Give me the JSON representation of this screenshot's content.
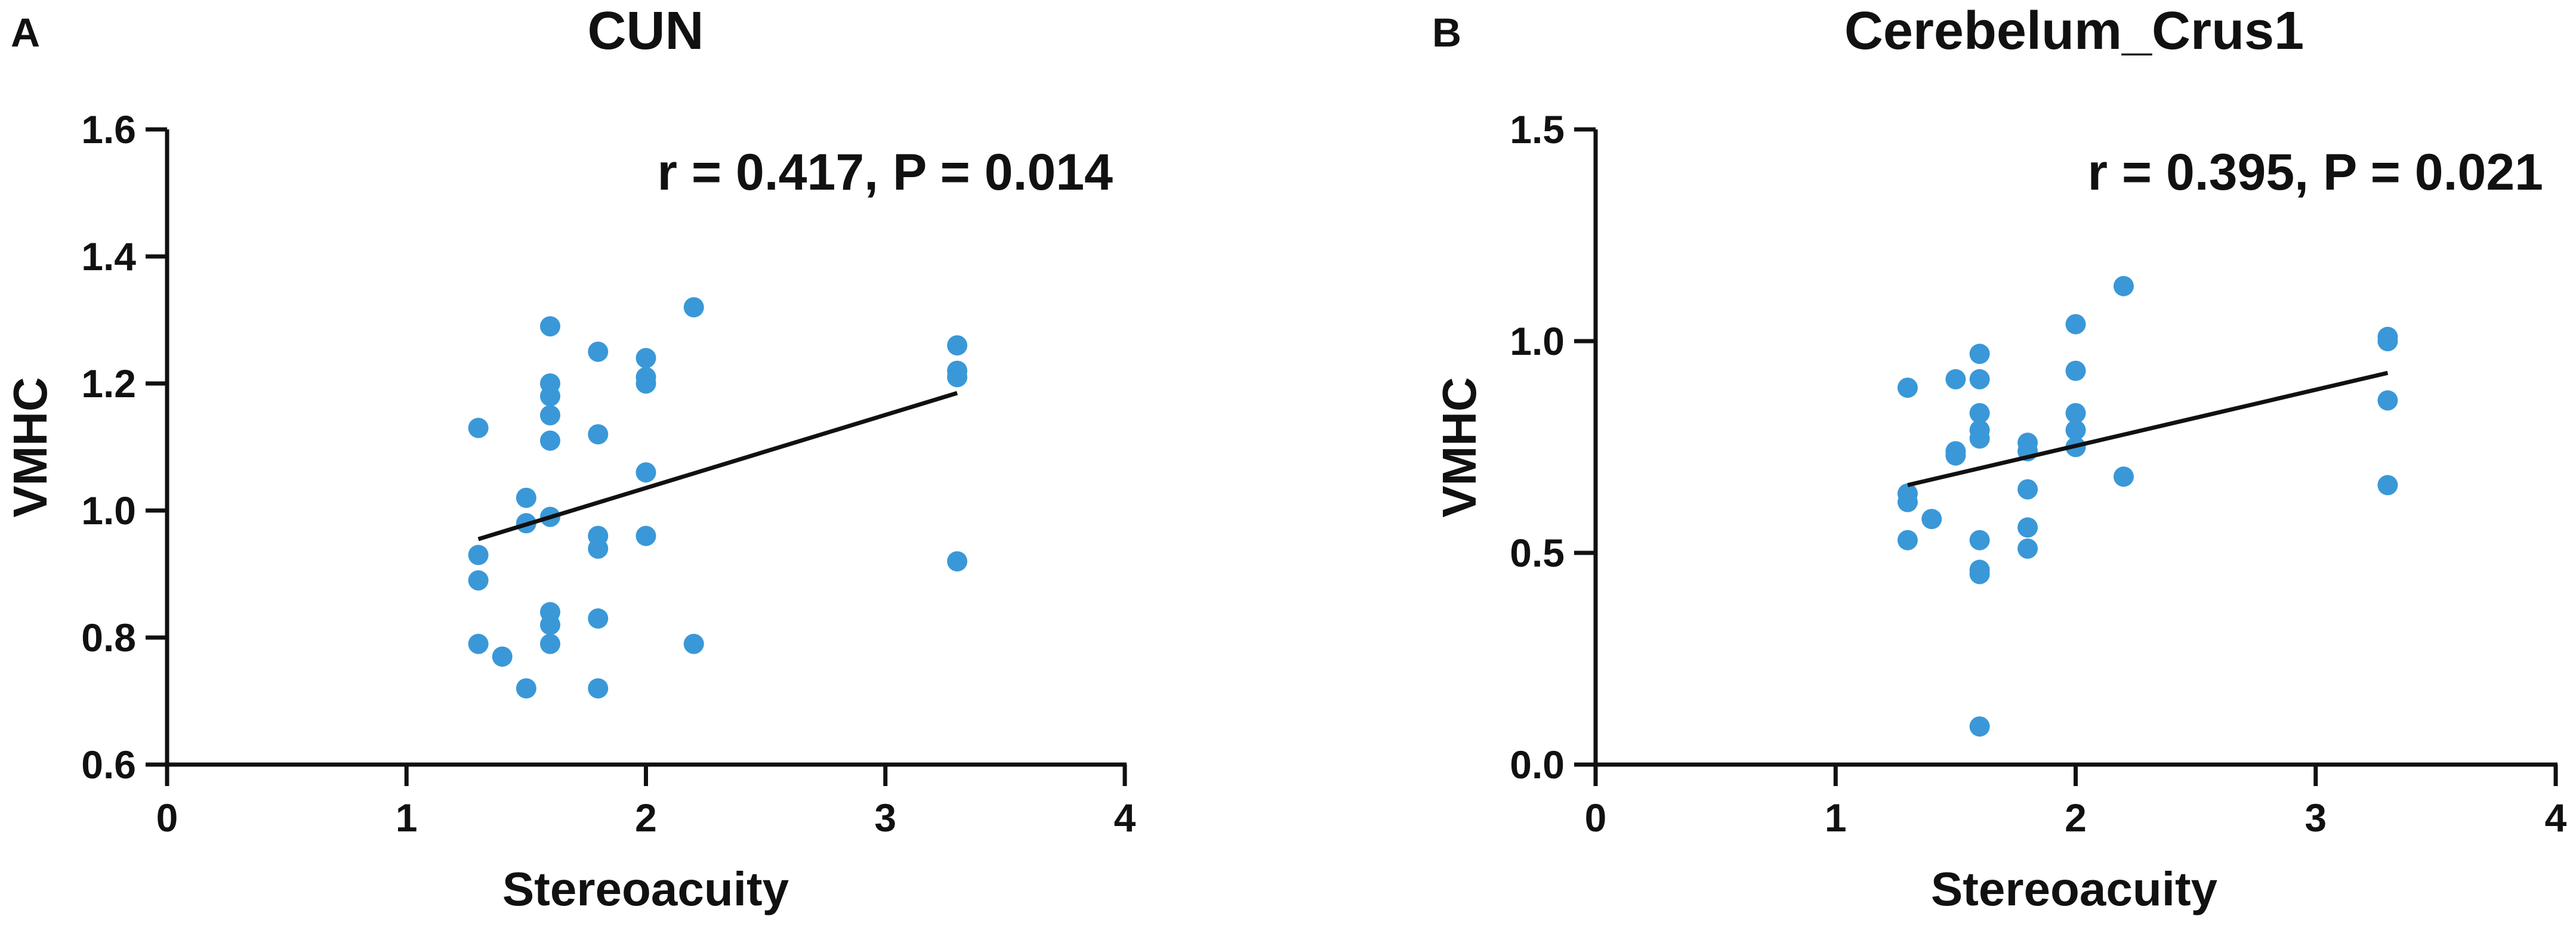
{
  "colors": {
    "point": "#3a98d8",
    "axis": "#111111",
    "fit_line": "#111111"
  },
  "chart_data": [
    {
      "type": "scatter",
      "panel_label": "A",
      "title": "CUN",
      "xlabel": "Stereoacuity",
      "ylabel": "VMHC",
      "annotation": "r = 0.417, P = 0.014",
      "xlim": [
        0,
        4
      ],
      "ylim": [
        0.6,
        1.6
      ],
      "x_ticks": [
        "0",
        "1",
        "2",
        "3",
        "4"
      ],
      "y_ticks": [
        "0.6",
        "0.8",
        "1.0",
        "1.2",
        "1.4",
        "1.6"
      ],
      "grid": false,
      "points": [
        {
          "x": 1.3,
          "y": 1.13
        },
        {
          "x": 1.3,
          "y": 0.93
        },
        {
          "x": 1.3,
          "y": 0.89
        },
        {
          "x": 1.3,
          "y": 0.79
        },
        {
          "x": 1.4,
          "y": 0.77
        },
        {
          "x": 1.5,
          "y": 1.02
        },
        {
          "x": 1.5,
          "y": 0.98
        },
        {
          "x": 1.5,
          "y": 0.72
        },
        {
          "x": 1.6,
          "y": 1.29
        },
        {
          "x": 1.6,
          "y": 1.2
        },
        {
          "x": 1.6,
          "y": 1.18
        },
        {
          "x": 1.6,
          "y": 1.15
        },
        {
          "x": 1.6,
          "y": 1.11
        },
        {
          "x": 1.6,
          "y": 0.99
        },
        {
          "x": 1.6,
          "y": 0.84
        },
        {
          "x": 1.6,
          "y": 0.82
        },
        {
          "x": 1.6,
          "y": 0.79
        },
        {
          "x": 1.8,
          "y": 1.25
        },
        {
          "x": 1.8,
          "y": 1.12
        },
        {
          "x": 1.8,
          "y": 0.96
        },
        {
          "x": 1.8,
          "y": 0.94
        },
        {
          "x": 1.8,
          "y": 0.83
        },
        {
          "x": 1.8,
          "y": 0.72
        },
        {
          "x": 2.0,
          "y": 1.24
        },
        {
          "x": 2.0,
          "y": 1.21
        },
        {
          "x": 2.0,
          "y": 1.2
        },
        {
          "x": 2.0,
          "y": 1.06
        },
        {
          "x": 2.0,
          "y": 0.96
        },
        {
          "x": 2.2,
          "y": 1.32
        },
        {
          "x": 2.2,
          "y": 0.79
        },
        {
          "x": 3.3,
          "y": 1.26
        },
        {
          "x": 3.3,
          "y": 1.22
        },
        {
          "x": 3.3,
          "y": 1.21
        },
        {
          "x": 3.3,
          "y": 0.92
        }
      ],
      "fit_line": {
        "x": [
          1.3,
          3.3
        ],
        "y": [
          0.955,
          1.185
        ]
      }
    },
    {
      "type": "scatter",
      "panel_label": "B",
      "title": "Cerebelum_Crus1",
      "xlabel": "Stereoacuity",
      "ylabel": "VMHC",
      "annotation": "r = 0.395, P = 0.021",
      "xlim": [
        0,
        4
      ],
      "ylim": [
        0.0,
        1.5
      ],
      "x_ticks": [
        "0",
        "1",
        "2",
        "3",
        "4"
      ],
      "y_ticks": [
        "0.0",
        "0.5",
        "1.0",
        "1.5"
      ],
      "grid": false,
      "points": [
        {
          "x": 1.3,
          "y": 0.89
        },
        {
          "x": 1.3,
          "y": 0.64
        },
        {
          "x": 1.3,
          "y": 0.62
        },
        {
          "x": 1.3,
          "y": 0.53
        },
        {
          "x": 1.4,
          "y": 0.58
        },
        {
          "x": 1.5,
          "y": 0.91
        },
        {
          "x": 1.5,
          "y": 0.74
        },
        {
          "x": 1.5,
          "y": 0.73
        },
        {
          "x": 1.6,
          "y": 0.97
        },
        {
          "x": 1.6,
          "y": 0.91
        },
        {
          "x": 1.6,
          "y": 0.83
        },
        {
          "x": 1.6,
          "y": 0.79
        },
        {
          "x": 1.6,
          "y": 0.77
        },
        {
          "x": 1.6,
          "y": 0.53
        },
        {
          "x": 1.6,
          "y": 0.46
        },
        {
          "x": 1.6,
          "y": 0.45
        },
        {
          "x": 1.6,
          "y": 0.09
        },
        {
          "x": 1.8,
          "y": 0.76
        },
        {
          "x": 1.8,
          "y": 0.74
        },
        {
          "x": 1.8,
          "y": 0.65
        },
        {
          "x": 1.8,
          "y": 0.56
        },
        {
          "x": 1.8,
          "y": 0.51
        },
        {
          "x": 2.0,
          "y": 1.04
        },
        {
          "x": 2.0,
          "y": 0.93
        },
        {
          "x": 2.0,
          "y": 0.83
        },
        {
          "x": 2.0,
          "y": 0.79
        },
        {
          "x": 2.0,
          "y": 0.75
        },
        {
          "x": 2.2,
          "y": 1.13
        },
        {
          "x": 2.2,
          "y": 0.68
        },
        {
          "x": 3.3,
          "y": 1.01
        },
        {
          "x": 3.3,
          "y": 1.0
        },
        {
          "x": 3.3,
          "y": 0.86
        },
        {
          "x": 3.3,
          "y": 0.66
        }
      ],
      "fit_line": {
        "x": [
          1.3,
          3.3
        ],
        "y": [
          0.66,
          0.925
        ]
      }
    }
  ]
}
